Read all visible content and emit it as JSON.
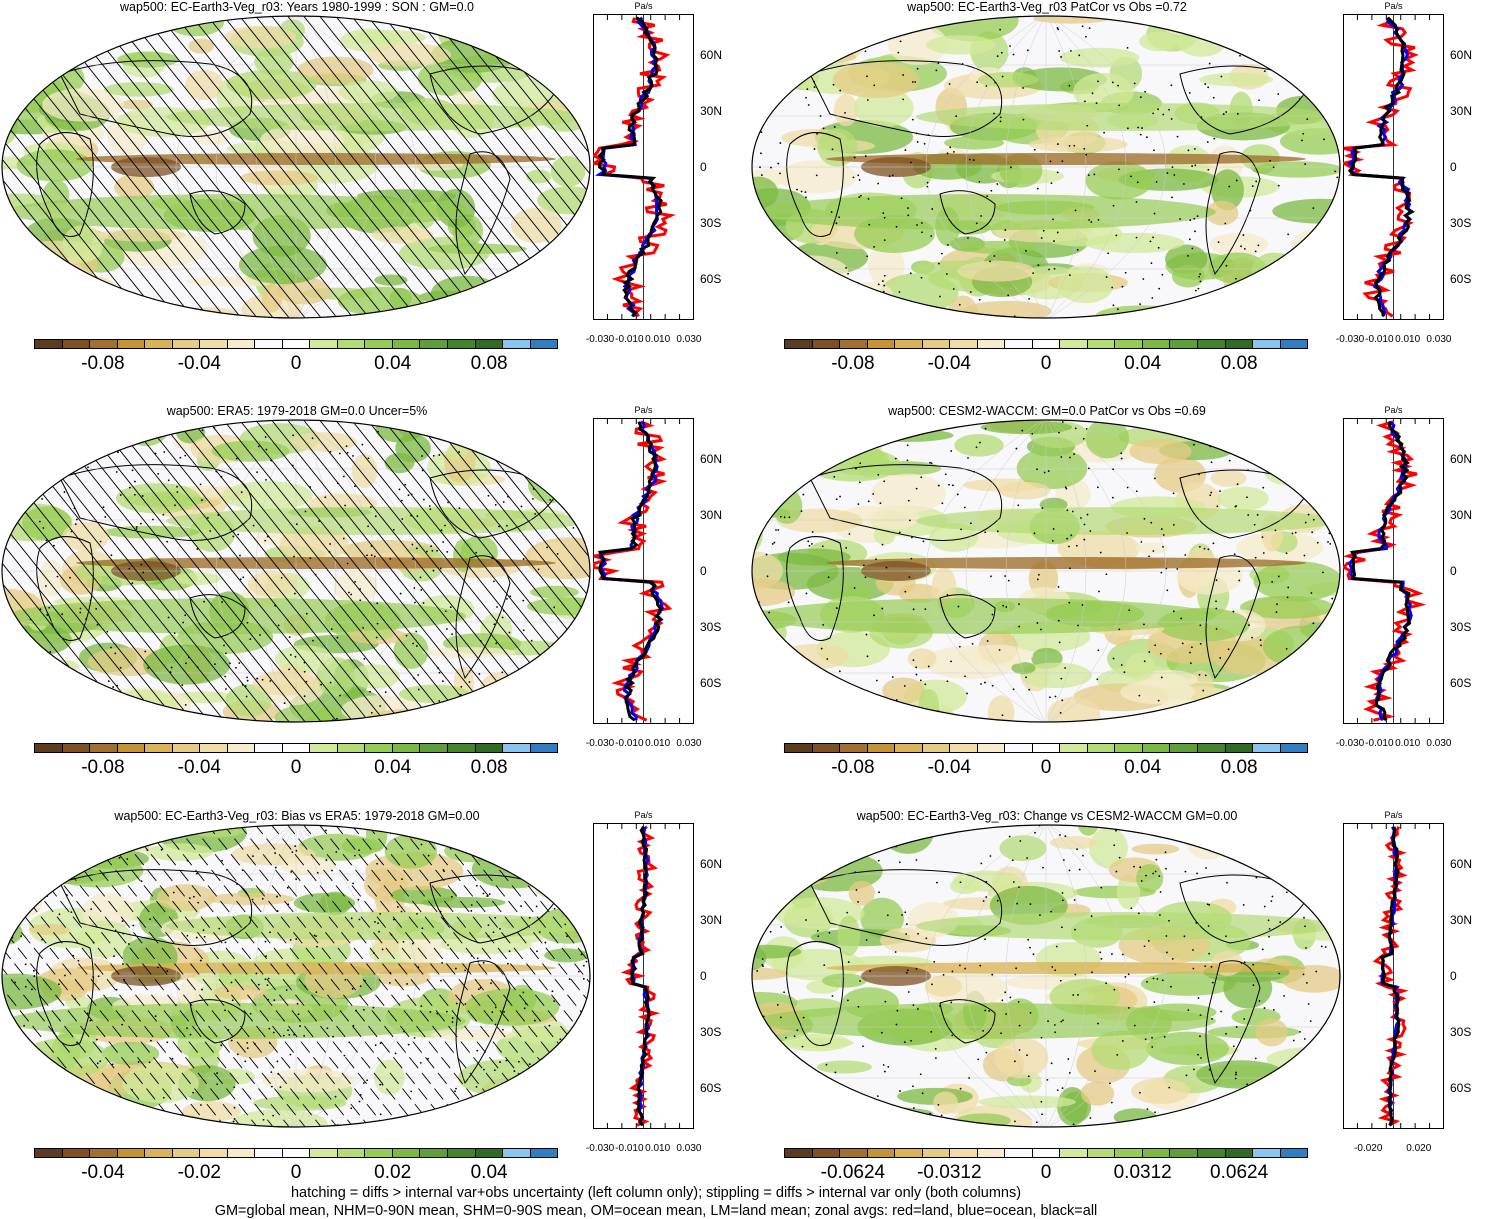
{
  "colors": {
    "colorbar": [
      "#5b3c1e",
      "#7e5124",
      "#a0702e",
      "#c29434",
      "#d9b457",
      "#e6cb84",
      "#efdca6",
      "#f6ebcb",
      "#f9f9ff",
      "#ffffff",
      "#d2ea9a",
      "#b4dc74",
      "#97cc54",
      "#7cb942",
      "#5f9e38",
      "#46832d",
      "#316a24",
      "#88c6ef",
      "#2f7ec2"
    ],
    "land": "#ff0000",
    "ocean": "#0000ff",
    "all": "#000000"
  },
  "panels": [
    {
      "id": "model",
      "title": "wap500: EC-Earth3-Veg_r03: Years 1980-1999 : SON : GM=0.0",
      "hatching": true,
      "stippling": false,
      "colorbar_ticks": [
        "-0.08",
        "-0.04",
        "0",
        "0.04",
        "0.08"
      ],
      "profile_unit": "Pa/s",
      "profile_xticks": [
        "-0.030",
        "-0.010",
        "0.010",
        "0.030"
      ],
      "profile_lat_ticks": [
        "60N",
        "30N",
        "0",
        "30S",
        "60S"
      ]
    },
    {
      "id": "model-patcor",
      "title": "wap500: EC-Earth3-Veg_r03 PatCor vs Obs =0.72",
      "hatching": false,
      "stippling": true,
      "colorbar_ticks": [
        "-0.08",
        "-0.04",
        "0",
        "0.04",
        "0.08"
      ],
      "profile_unit": "Pa/s",
      "profile_xticks": [
        "-0.030",
        "-0.010",
        "0.010",
        "0.030"
      ],
      "profile_lat_ticks": [
        "60N",
        "30N",
        "0",
        "30S",
        "60S"
      ]
    },
    {
      "id": "obs",
      "title": "wap500: ERA5: 1979-2018 GM=0.0 Uncer=5%",
      "hatching": true,
      "stippling": true,
      "colorbar_ticks": [
        "-0.08",
        "-0.04",
        "0",
        "0.04",
        "0.08"
      ],
      "profile_unit": "Pa/s",
      "profile_xticks": [
        "-0.030",
        "-0.010",
        "0.010",
        "0.030"
      ],
      "profile_lat_ticks": [
        "60N",
        "30N",
        "0",
        "30S",
        "60S"
      ]
    },
    {
      "id": "reference-model",
      "title": "wap500: CESM2-WACCM: GM=0.0 PatCor vs Obs =0.69",
      "hatching": false,
      "stippling": true,
      "colorbar_ticks": [
        "-0.08",
        "-0.04",
        "0",
        "0.04",
        "0.08"
      ],
      "profile_unit": "Pa/s",
      "profile_xticks": [
        "-0.030",
        "-0.010",
        "0.010",
        "0.030"
      ],
      "profile_lat_ticks": [
        "60N",
        "30N",
        "0",
        "30S",
        "60S"
      ]
    },
    {
      "id": "bias",
      "title": "wap500: EC-Earth3-Veg_r03: Bias vs ERA5: 1979-2018  GM=0.00",
      "hatching": true,
      "stippling": true,
      "colorbar_ticks": [
        "-0.04",
        "-0.02",
        "0",
        "0.02",
        "0.04"
      ],
      "profile_unit": "Pa/s",
      "profile_xticks": [
        "-0.030",
        "-0.010",
        "0.010",
        "0.030"
      ],
      "profile_lat_ticks": [
        "60N",
        "30N",
        "0",
        "30S",
        "60S"
      ]
    },
    {
      "id": "change",
      "title": "wap500: EC-Earth3-Veg_r03: Change vs CESM2-WACCM GM=0.00",
      "hatching": false,
      "stippling": true,
      "colorbar_ticks": [
        "-0.0624",
        "-0.0312",
        "0",
        "0.0312",
        "0.0624"
      ],
      "profile_unit": "Pa/s",
      "profile_xticks": [
        "-0.020",
        "0.020"
      ],
      "profile_lat_ticks": [
        "60N",
        "30N",
        "0",
        "30S",
        "60S"
      ]
    }
  ],
  "footnote": {
    "line1": "hatching = diffs > internal var+obs uncertainty (left column only); stippling = diffs > internal var only (both columns)",
    "line2": "GM=global mean, NHM=0-90N mean, SHM=0-90S mean, OM=ocean mean, LM=land mean; zonal avgs: red=land, blue=ocean, black=all"
  }
}
